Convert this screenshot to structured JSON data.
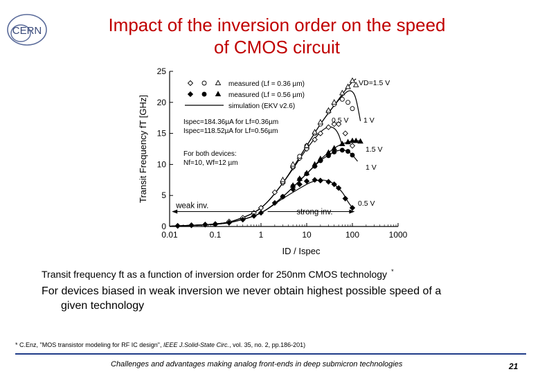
{
  "slide": {
    "logo_text": "CERN",
    "title_line1": "Impact of the inversion order on the speed",
    "title_line2": "of CMOS circuit",
    "caption": "Transit frequency ft as a function of inversion order for 250nm CMOS technology",
    "caption_mark": "*",
    "statement_line1": "For devices biased in weak inversion we never obtain highest possible speed of a",
    "statement_line2": "given technology",
    "reference_mark": "*",
    "reference_pre": "C.Enz, \"MOS transistor modeling for RF IC design\",",
    "reference_journal": "IEEE J.Solid-State Circ.",
    "reference_post": ", vol. 35, no. 2, pp.186-201)",
    "footer": "Challenges and advantages making analog front-ends in deep submicron technologies",
    "page_number": "21",
    "title_color": "#c00000",
    "divider_color": "#1f3c88"
  },
  "chart_data": {
    "type": "line",
    "x_scale": "log",
    "xlim": [
      0.01,
      1000
    ],
    "ylim": [
      0,
      25
    ],
    "x_ticks": [
      "0.01",
      "0.1",
      "1",
      "10",
      "100",
      "1000"
    ],
    "y_ticks": [
      "0",
      "5",
      "10",
      "15",
      "20",
      "25"
    ],
    "xlabel": "ID / Ispec",
    "ylabel": "Transit Frequency fT [GHz]",
    "legend": {
      "placement": "top-left",
      "entries": [
        "measured (Lf = 0.36 µm)",
        "measured (Lf = 0.56 µm)",
        "simulation (EKV v2.6)"
      ]
    },
    "notes": [
      "Ispec=184.36µA for Lf=0.36µm",
      "Ispec=118.52µA for Lf=0.56µm",
      "For both devices:",
      "Nf=10, Wf=12 µm"
    ],
    "region_labels": {
      "weak": "weak inv.",
      "strong": "strong inv."
    },
    "series": [
      {
        "name": "simulation L=0.36µm VD=1.5 V",
        "label": "VD=1.5 V",
        "x": [
          0.01,
          0.1,
          0.3,
          1,
          3,
          10,
          20,
          40,
          60,
          80,
          100,
          120
        ],
        "y": [
          0.05,
          0.4,
          1.1,
          3,
          7,
          13,
          16.5,
          19.5,
          21.3,
          22.5,
          23.3,
          23.8
        ]
      },
      {
        "name": "simulation L=0.36µm VD=1 V",
        "label": "1 V",
        "x": [
          0.01,
          0.1,
          0.3,
          1,
          3,
          10,
          20,
          40,
          60,
          80,
          100,
          120,
          150
        ],
        "y": [
          0.05,
          0.4,
          1.1,
          3,
          7,
          13,
          16.5,
          19.5,
          21,
          21.8,
          21.7,
          20.5,
          17
        ]
      },
      {
        "name": "simulation L=0.36µm VD=0.5 V",
        "label": "0.5 V",
        "x": [
          0.01,
          0.1,
          0.3,
          1,
          3,
          10,
          20,
          30,
          40,
          50,
          60
        ],
        "y": [
          0.05,
          0.4,
          1.1,
          3,
          7,
          12.5,
          15.2,
          16,
          15.8,
          14.8,
          13
        ]
      },
      {
        "name": "simulation L=0.56µm VD=1.5 V",
        "label": "1.5 V",
        "x": [
          0.01,
          0.1,
          0.3,
          1,
          3,
          10,
          20,
          40,
          60,
          80,
          100,
          150
        ],
        "y": [
          0.05,
          0.35,
          0.9,
          2.2,
          4.8,
          8.5,
          10.8,
          12.6,
          13.3,
          13.6,
          13.8,
          13.8
        ]
      },
      {
        "name": "simulation L=0.56µm VD=1 V",
        "label": "1 V",
        "x": [
          0.01,
          0.1,
          0.3,
          1,
          3,
          10,
          20,
          40,
          60,
          80,
          100,
          130
        ],
        "y": [
          0.05,
          0.35,
          0.9,
          2.2,
          4.8,
          8.5,
          10.6,
          12,
          12.3,
          12.1,
          11.5,
          10.5
        ]
      },
      {
        "name": "simulation L=0.56µm VD=0.5 V",
        "label": "0.5 V",
        "x": [
          0.01,
          0.1,
          0.3,
          1,
          3,
          10,
          15,
          20,
          30,
          40,
          60,
          80,
          100
        ],
        "y": [
          0.05,
          0.35,
          0.9,
          2.2,
          4.5,
          6.8,
          7.3,
          7.5,
          7.3,
          6.8,
          5.5,
          4,
          3
        ]
      }
    ],
    "markers_036_open_diamond": {
      "x": [
        0.015,
        0.03,
        0.06,
        0.1,
        0.2,
        0.4,
        0.7,
        1,
        2,
        3,
        5,
        7,
        10,
        15,
        20,
        30,
        40,
        50,
        70,
        100
      ],
      "y": [
        0.1,
        0.2,
        0.3,
        0.4,
        0.8,
        1.4,
        2.2,
        3,
        5.5,
        7,
        9.5,
        11,
        12.5,
        14,
        15,
        16,
        16.5,
        16.5,
        15,
        13
      ]
    },
    "markers_036_open_circle": {
      "x": [
        3,
        5,
        7,
        10,
        15,
        20,
        30,
        40,
        60,
        80,
        100
      ],
      "y": [
        7.2,
        9.7,
        11.3,
        13,
        15,
        16.5,
        18.5,
        19.7,
        20.5,
        20,
        19
      ]
    },
    "markers_036_open_triangle": {
      "x": [
        3,
        5,
        10,
        15,
        20,
        30,
        40,
        60,
        80,
        100,
        120
      ],
      "y": [
        7.5,
        10,
        13,
        15.2,
        16.8,
        18.7,
        20,
        21.5,
        22.5,
        23.5,
        22.8
      ]
    },
    "markers_056_filled_diamond": {
      "x": [
        0.015,
        0.03,
        0.06,
        0.1,
        0.2,
        0.4,
        0.7,
        1,
        2,
        3,
        5,
        7,
        10,
        15,
        20,
        30,
        40,
        50,
        70,
        100
      ],
      "y": [
        0.1,
        0.2,
        0.3,
        0.35,
        0.6,
        1.1,
        1.7,
        2.2,
        3.8,
        4.8,
        6,
        6.8,
        7.3,
        7.5,
        7.4,
        7.2,
        6.8,
        6.2,
        4.5,
        3
      ]
    },
    "markers_056_filled_circle": {
      "x": [
        3,
        5,
        7,
        10,
        15,
        20,
        30,
        40,
        60,
        80,
        100
      ],
      "y": [
        4.8,
        6.5,
        7.6,
        8.5,
        9.7,
        10.6,
        11.4,
        12,
        12.3,
        12.1,
        11.5
      ]
    },
    "markers_056_filled_triangle": {
      "x": [
        5,
        7,
        10,
        15,
        20,
        30,
        40,
        60,
        80,
        100,
        120,
        150
      ],
      "y": [
        6.6,
        7.7,
        8.6,
        10,
        10.9,
        11.9,
        12.6,
        13.3,
        13.6,
        13.8,
        13.8,
        13.7
      ]
    }
  }
}
